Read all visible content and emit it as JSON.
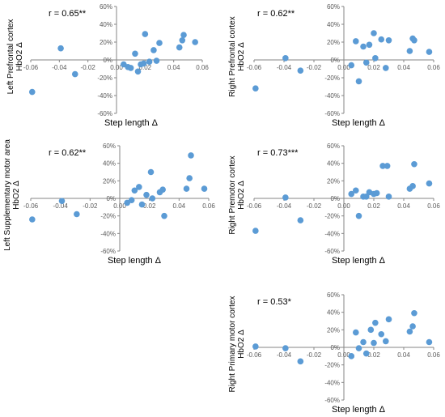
{
  "chart_data": [
    {
      "type": "scatter",
      "annotation": "r = 0.65**",
      "ylabel_lines": [
        "Left Prefrontal cortex",
        "HbO2 Δ"
      ],
      "xlabel": "Step length Δ",
      "xlim": [
        -0.06,
        0.06
      ],
      "ylim": [
        -0.6,
        0.6
      ],
      "x_ticks": [
        "-0.06",
        "-0.04",
        "-0.02",
        "0.00",
        "0.02",
        "0.04",
        "0.06"
      ],
      "y_ticks": [
        "-60%",
        "-40%",
        "-20%",
        "0%",
        "20%",
        "40%",
        "60%"
      ],
      "points": [
        {
          "x": -0.059,
          "y": -0.36
        },
        {
          "x": -0.039,
          "y": 0.13
        },
        {
          "x": -0.029,
          "y": -0.16
        },
        {
          "x": 0.005,
          "y": -0.05
        },
        {
          "x": 0.008,
          "y": -0.08
        },
        {
          "x": 0.01,
          "y": -0.09
        },
        {
          "x": 0.013,
          "y": 0.07
        },
        {
          "x": 0.015,
          "y": -0.13
        },
        {
          "x": 0.017,
          "y": -0.05
        },
        {
          "x": 0.019,
          "y": -0.04
        },
        {
          "x": 0.02,
          "y": 0.29
        },
        {
          "x": 0.023,
          "y": -0.02
        },
        {
          "x": 0.026,
          "y": 0.11
        },
        {
          "x": 0.028,
          "y": -0.01
        },
        {
          "x": 0.03,
          "y": 0.19
        },
        {
          "x": 0.044,
          "y": 0.14
        },
        {
          "x": 0.046,
          "y": 0.22
        },
        {
          "x": 0.047,
          "y": 0.28
        },
        {
          "x": 0.055,
          "y": 0.2
        }
      ]
    },
    {
      "type": "scatter",
      "annotation": "r = 0.62**",
      "ylabel_lines": [
        "Right Prefrontal cortex",
        "HbO2 Δ"
      ],
      "xlabel": "Step length Δ",
      "xlim": [
        -0.06,
        0.06
      ],
      "ylim": [
        -0.6,
        0.6
      ],
      "x_ticks": [
        "-0.06",
        "-0.04",
        "-0.02",
        "0.00",
        "0.02",
        "0.04",
        "0.06"
      ],
      "y_ticks": [
        "-60%",
        "-40%",
        "-20%",
        "0%",
        "20%",
        "40%",
        "60%"
      ],
      "points": [
        {
          "x": -0.059,
          "y": -0.32
        },
        {
          "x": -0.039,
          "y": 0.02
        },
        {
          "x": -0.029,
          "y": -0.12
        },
        {
          "x": 0.005,
          "y": -0.06
        },
        {
          "x": 0.008,
          "y": 0.21
        },
        {
          "x": 0.01,
          "y": -0.24
        },
        {
          "x": 0.013,
          "y": 0.15
        },
        {
          "x": 0.015,
          "y": -0.03
        },
        {
          "x": 0.017,
          "y": 0.17
        },
        {
          "x": 0.02,
          "y": 0.3
        },
        {
          "x": 0.021,
          "y": 0.02
        },
        {
          "x": 0.025,
          "y": 0.23
        },
        {
          "x": 0.028,
          "y": -0.09
        },
        {
          "x": 0.03,
          "y": 0.22
        },
        {
          "x": 0.044,
          "y": 0.1
        },
        {
          "x": 0.046,
          "y": 0.24
        },
        {
          "x": 0.047,
          "y": 0.22
        },
        {
          "x": 0.057,
          "y": 0.09
        }
      ]
    },
    {
      "type": "scatter",
      "annotation": "r = 0.62**",
      "ylabel_lines": [
        "Left Supplementary motor area",
        "HbO2 Δ"
      ],
      "xlabel": "Step length Δ",
      "xlim": [
        -0.06,
        0.06
      ],
      "ylim": [
        -0.6,
        0.6
      ],
      "x_ticks": [
        "-0.06",
        "-0.04",
        "-0.02",
        "0.00",
        "0.02",
        "0.04",
        "0.06"
      ],
      "y_ticks": [
        "-60%",
        "-40%",
        "-20%",
        "0%",
        "20%",
        "40%",
        "60%"
      ],
      "points": [
        {
          "x": -0.059,
          "y": -0.24
        },
        {
          "x": -0.039,
          "y": -0.03
        },
        {
          "x": -0.029,
          "y": -0.18
        },
        {
          "x": 0.005,
          "y": -0.05
        },
        {
          "x": 0.008,
          "y": -0.02
        },
        {
          "x": 0.01,
          "y": 0.09
        },
        {
          "x": 0.013,
          "y": 0.13
        },
        {
          "x": 0.015,
          "y": -0.07
        },
        {
          "x": 0.018,
          "y": 0.04
        },
        {
          "x": 0.021,
          "y": 0.3
        },
        {
          "x": 0.022,
          "y": 0.0
        },
        {
          "x": 0.027,
          "y": 0.07
        },
        {
          "x": 0.029,
          "y": 0.1
        },
        {
          "x": 0.03,
          "y": -0.2
        },
        {
          "x": 0.045,
          "y": 0.11
        },
        {
          "x": 0.047,
          "y": 0.23
        },
        {
          "x": 0.048,
          "y": 0.49
        },
        {
          "x": 0.057,
          "y": 0.11
        }
      ]
    },
    {
      "type": "scatter",
      "annotation": "r = 0.73***",
      "ylabel_lines": [
        "Right Premotor cortex",
        "HbO2 Δ"
      ],
      "xlabel": "Step length Δ",
      "xlim": [
        -0.06,
        0.06
      ],
      "ylim": [
        -0.6,
        0.6
      ],
      "x_ticks": [
        "-0.06",
        "-0.04",
        "-0.02",
        "0.00",
        "0.02",
        "0.04",
        "0.06"
      ],
      "y_ticks": [
        "-60%",
        "-40%",
        "-20%",
        "0%",
        "20%",
        "40%",
        "60%"
      ],
      "points": [
        {
          "x": -0.059,
          "y": -0.37
        },
        {
          "x": -0.039,
          "y": 0.01
        },
        {
          "x": -0.029,
          "y": -0.25
        },
        {
          "x": 0.005,
          "y": 0.05
        },
        {
          "x": 0.008,
          "y": 0.09
        },
        {
          "x": 0.01,
          "y": -0.2
        },
        {
          "x": 0.013,
          "y": 0.02
        },
        {
          "x": 0.015,
          "y": 0.02
        },
        {
          "x": 0.017,
          "y": 0.07
        },
        {
          "x": 0.02,
          "y": 0.05
        },
        {
          "x": 0.022,
          "y": 0.06
        },
        {
          "x": 0.026,
          "y": 0.37
        },
        {
          "x": 0.029,
          "y": 0.37
        },
        {
          "x": 0.03,
          "y": 0.02
        },
        {
          "x": 0.044,
          "y": 0.11
        },
        {
          "x": 0.046,
          "y": 0.14
        },
        {
          "x": 0.047,
          "y": 0.39
        },
        {
          "x": 0.057,
          "y": 0.17
        }
      ]
    },
    {
      "type": "scatter",
      "annotation": "r = 0.53*",
      "ylabel_lines": [
        "Right Primary motor cortex",
        "HbO2 Δ"
      ],
      "xlabel": "Step length Δ",
      "xlim": [
        -0.06,
        0.06
      ],
      "ylim": [
        -0.6,
        0.6
      ],
      "x_ticks": [
        "-0.06",
        "-0.04",
        "-0.02",
        "0.00",
        "0.02",
        "0.04",
        "0.06"
      ],
      "y_ticks": [
        "-60%",
        "-40%",
        "-20%",
        "0%",
        "20%",
        "40%",
        "60%"
      ],
      "points": [
        {
          "x": -0.059,
          "y": 0.01
        },
        {
          "x": -0.039,
          "y": -0.01
        },
        {
          "x": -0.029,
          "y": -0.16
        },
        {
          "x": 0.005,
          "y": -0.1
        },
        {
          "x": 0.008,
          "y": 0.17
        },
        {
          "x": 0.01,
          "y": -0.01
        },
        {
          "x": 0.013,
          "y": 0.06
        },
        {
          "x": 0.015,
          "y": -0.07
        },
        {
          "x": 0.018,
          "y": 0.2
        },
        {
          "x": 0.02,
          "y": 0.05
        },
        {
          "x": 0.021,
          "y": 0.28
        },
        {
          "x": 0.025,
          "y": 0.15
        },
        {
          "x": 0.028,
          "y": 0.07
        },
        {
          "x": 0.03,
          "y": 0.32
        },
        {
          "x": 0.044,
          "y": 0.18
        },
        {
          "x": 0.046,
          "y": 0.24
        },
        {
          "x": 0.047,
          "y": 0.39
        },
        {
          "x": 0.057,
          "y": 0.06
        }
      ]
    }
  ]
}
